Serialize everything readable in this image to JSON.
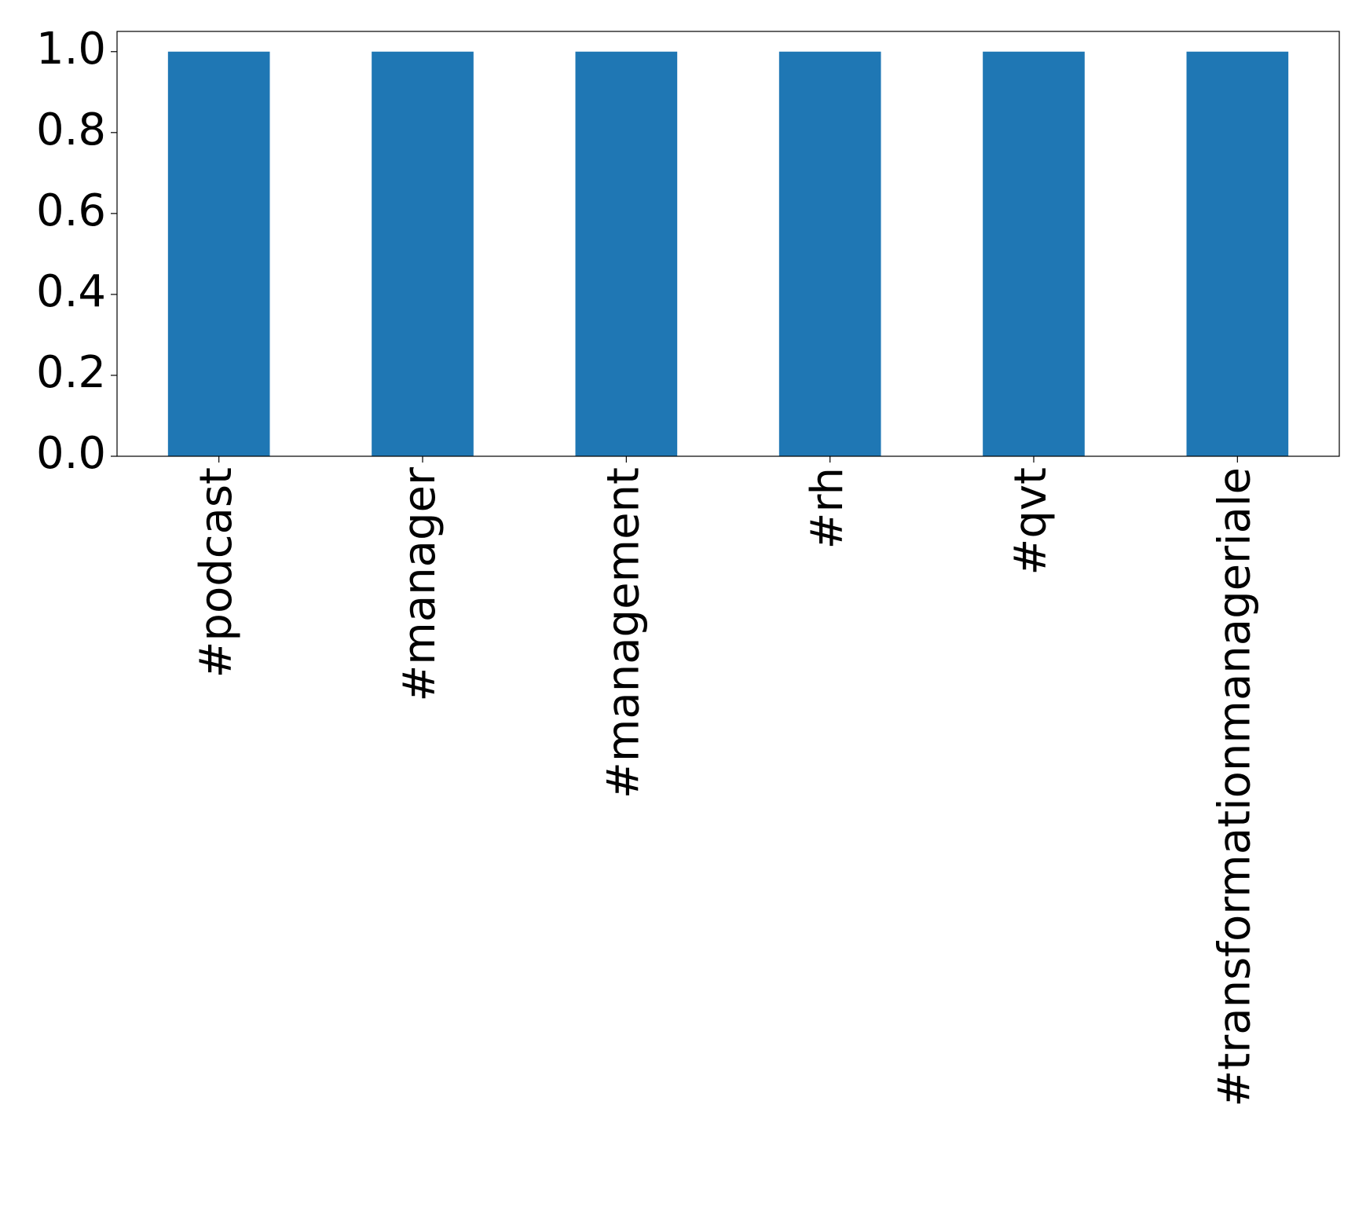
{
  "chart_data": {
    "type": "bar",
    "categories": [
      "#podcast",
      "#manager",
      "#management",
      "#rh",
      "#qvt",
      "#transformationmanageriale"
    ],
    "values": [
      1,
      1,
      1,
      1,
      1,
      1
    ],
    "color": "#1f77b4",
    "ylim": [
      0,
      1.05
    ],
    "yticks": [
      {
        "value": 0,
        "label": "0.0"
      },
      {
        "value": 0.2,
        "label": "0.2"
      },
      {
        "value": 0.4,
        "label": "0.4"
      },
      {
        "value": 0.6,
        "label": "0.6"
      },
      {
        "value": 0.8,
        "label": "0.8"
      },
      {
        "value": 1,
        "label": "1.0"
      }
    ],
    "grid": false
  }
}
